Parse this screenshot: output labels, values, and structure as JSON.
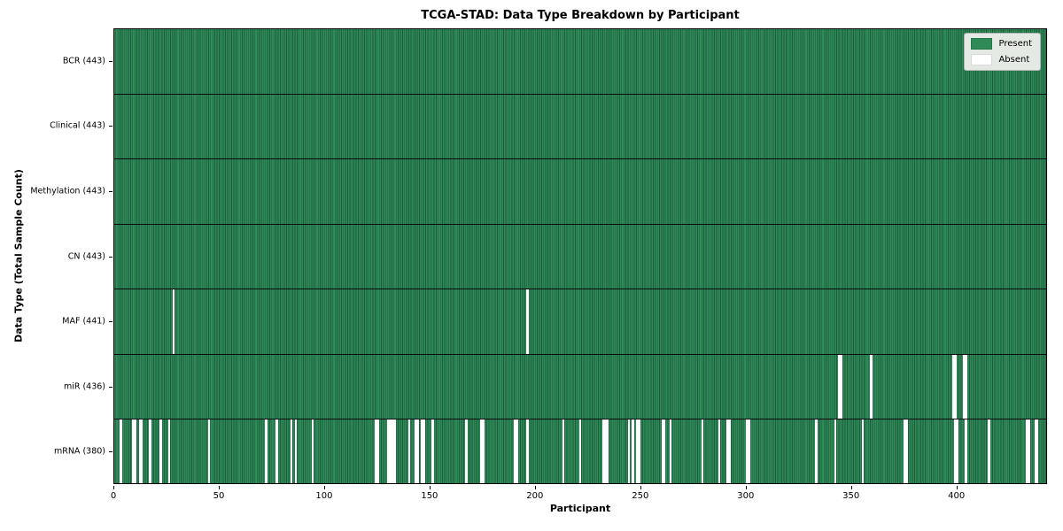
{
  "chart_data": {
    "type": "heatmap",
    "title": "TCGA-STAD: Data Type Breakdown by Participant",
    "xlabel": "Participant",
    "ylabel": "Data Type (Total Sample Count)",
    "n_participants": 443,
    "x_ticks": [
      0,
      50,
      100,
      150,
      200,
      250,
      300,
      350,
      400
    ],
    "colors": {
      "present": "#2e8b57",
      "absent": "#ffffff",
      "cell_edge": "#1e5a3c",
      "row_separator": "#0a0a0a"
    },
    "legend": {
      "position": "upper right",
      "entries": [
        {
          "label": "Present",
          "color": "#2e8b57"
        },
        {
          "label": "Absent",
          "color": "#ffffff"
        }
      ]
    },
    "rows": [
      {
        "label": "BCR (443)",
        "data_type": "BCR",
        "total": 443,
        "absent_participants": []
      },
      {
        "label": "Clinical (443)",
        "data_type": "Clinical",
        "total": 443,
        "absent_participants": []
      },
      {
        "label": "Methylation (443)",
        "data_type": "Methylation",
        "total": 443,
        "absent_participants": []
      },
      {
        "label": "CN (443)",
        "data_type": "CN",
        "total": 443,
        "absent_participants": []
      },
      {
        "label": "MAF (441)",
        "data_type": "MAF",
        "total": 441,
        "absent_participants": [
          28,
          196
        ]
      },
      {
        "label": "miR (436)",
        "data_type": "miR",
        "total": 436,
        "absent_participants": [
          344,
          345,
          359,
          398,
          399,
          403,
          404
        ]
      },
      {
        "label": "mRNA (380)",
        "data_type": "mRNA",
        "total": 380,
        "absent_participants": [
          3,
          9,
          10,
          12,
          13,
          17,
          22,
          26,
          45,
          72,
          77,
          84,
          86,
          94,
          124,
          125,
          130,
          131,
          132,
          133,
          140,
          143,
          144,
          146,
          147,
          151,
          167,
          174,
          175,
          190,
          191,
          196,
          213,
          221,
          232,
          233,
          234,
          244,
          246,
          248,
          249,
          260,
          261,
          264,
          279,
          287,
          291,
          292,
          300,
          301,
          333,
          342,
          355,
          375,
          376,
          399,
          400,
          404,
          415,
          433,
          434,
          437,
          438
        ]
      }
    ]
  }
}
